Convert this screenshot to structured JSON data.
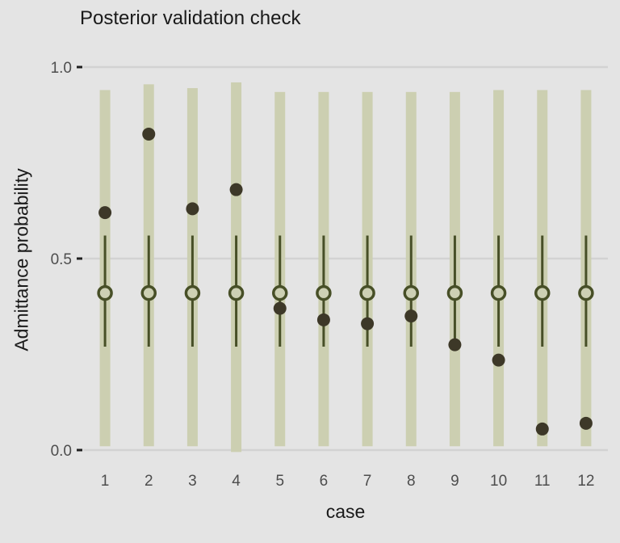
{
  "chart_data": {
    "type": "scatter",
    "title": "Posterior validation check",
    "xlabel": "case",
    "ylabel": "Admittance probability",
    "categories": [
      "1",
      "2",
      "3",
      "4",
      "5",
      "6",
      "7",
      "8",
      "9",
      "10",
      "11",
      "12"
    ],
    "y_ticks": [
      {
        "value": 0.0,
        "label": "0.0"
      },
      {
        "value": 0.5,
        "label": "0.5"
      },
      {
        "value": 1.0,
        "label": "1.0"
      }
    ],
    "ylim": [
      -0.04,
      1.05
    ],
    "grid": "horizontal-major-only",
    "legend": "none",
    "series": [
      {
        "name": "wide-posterior-interval",
        "style": "thick-bar",
        "color": "#cccfb1",
        "low": [
          0.01,
          0.01,
          0.01,
          -0.005,
          0.01,
          0.01,
          0.01,
          0.01,
          0.01,
          0.01,
          0.01,
          0.01
        ],
        "high": [
          0.94,
          0.955,
          0.945,
          0.96,
          0.935,
          0.935,
          0.935,
          0.935,
          0.935,
          0.94,
          0.94,
          0.94
        ]
      },
      {
        "name": "narrow-posterior-interval",
        "style": "thin-line",
        "color": "#474f27",
        "low": [
          0.27,
          0.27,
          0.27,
          0.27,
          0.27,
          0.27,
          0.27,
          0.27,
          0.27,
          0.27,
          0.27,
          0.27
        ],
        "high": [
          0.56,
          0.56,
          0.56,
          0.56,
          0.56,
          0.56,
          0.56,
          0.56,
          0.56,
          0.56,
          0.56,
          0.56
        ]
      },
      {
        "name": "posterior-median",
        "style": "open-circle",
        "color": "#474f27",
        "fill": "#cdd0b4",
        "values": [
          0.41,
          0.41,
          0.41,
          0.41,
          0.41,
          0.41,
          0.41,
          0.41,
          0.41,
          0.41,
          0.41,
          0.41
        ]
      },
      {
        "name": "observed-value",
        "style": "filled-dot",
        "color": "#3d3828",
        "values": [
          0.62,
          0.825,
          0.63,
          0.68,
          0.37,
          0.34,
          0.33,
          0.35,
          0.275,
          0.235,
          0.055,
          0.07
        ]
      }
    ],
    "colors": {
      "background": "#e4e4e4",
      "gridline": "#d2d2d2",
      "tick_label": "#4d4d4d",
      "tick_mark": "#1f1f1f",
      "text": "#1a1a1a"
    }
  }
}
